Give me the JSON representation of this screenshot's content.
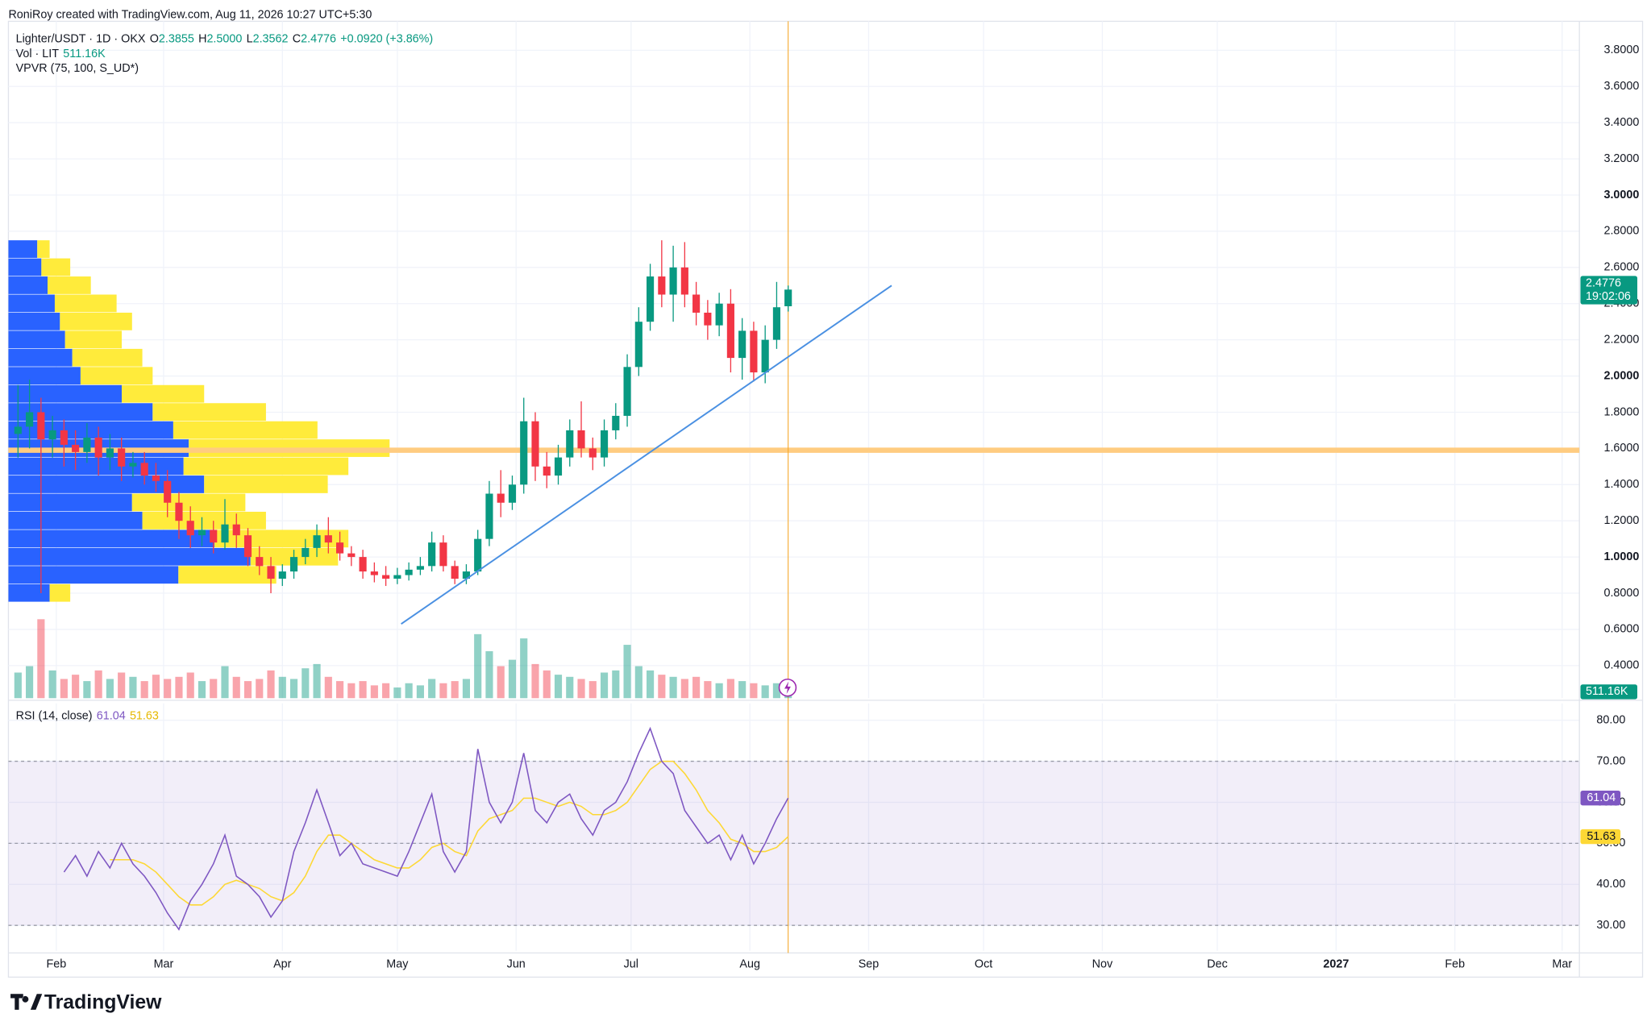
{
  "header": {
    "attribution": "RoniRoy created with TradingView.com, Aug 11, 2026 10:27 UTC+5:30"
  },
  "chart_data": {
    "type": "candlestick",
    "legend": {
      "symbol": "Lighter/USDT · 1D · OKX",
      "ohlc": [
        {
          "label": "O",
          "value": "2.3855"
        },
        {
          "label": "H",
          "value": "2.5000"
        },
        {
          "label": "L",
          "value": "2.3562"
        },
        {
          "label": "C",
          "value": "2.4776"
        }
      ],
      "change": "+0.0920 (+3.86%)",
      "volume_label": "Vol · LIT",
      "volume_value": "511.16K",
      "vpvr_label": "VPVR (75, 100, S_UD*)"
    },
    "x": [
      21,
      24,
      27,
      30,
      33,
      36,
      39,
      42,
      45,
      48,
      51,
      54,
      57,
      60,
      63,
      66,
      69,
      72,
      75,
      78,
      81,
      84,
      87,
      90,
      93,
      96,
      99,
      102,
      105,
      108,
      111,
      114,
      117,
      120,
      123,
      126,
      129,
      132,
      135,
      138,
      141,
      144,
      147,
      150,
      153,
      156,
      159,
      162,
      165,
      168,
      171,
      174,
      177,
      180,
      183,
      186,
      189,
      192,
      195,
      198,
      201,
      204,
      207,
      210,
      213,
      216,
      219,
      222
    ],
    "open": [
      1.68,
      1.72,
      1.8,
      1.65,
      1.7,
      1.62,
      1.58,
      1.66,
      1.55,
      1.6,
      1.5,
      1.52,
      1.45,
      1.42,
      1.3,
      1.2,
      1.12,
      1.15,
      1.08,
      1.18,
      1.12,
      1.0,
      0.95,
      0.88,
      0.92,
      1.0,
      1.05,
      1.12,
      1.08,
      1.02,
      1.0,
      0.92,
      0.9,
      0.88,
      0.9,
      0.93,
      0.95,
      1.08,
      0.95,
      0.88,
      0.92,
      1.1,
      1.35,
      1.3,
      1.4,
      1.75,
      1.5,
      1.45,
      1.55,
      1.7,
      1.6,
      1.55,
      1.7,
      1.78,
      2.05,
      2.3,
      2.55,
      2.45,
      2.6,
      2.45,
      2.35,
      2.28,
      2.4,
      2.1,
      2.25,
      2.02,
      2.2,
      2.3855
    ],
    "high": [
      1.95,
      1.98,
      1.88,
      1.78,
      1.76,
      1.7,
      1.74,
      1.72,
      1.68,
      1.66,
      1.58,
      1.58,
      1.52,
      1.48,
      1.36,
      1.28,
      1.22,
      1.2,
      1.32,
      1.24,
      1.16,
      1.06,
      1.0,
      0.96,
      1.04,
      1.1,
      1.18,
      1.22,
      1.14,
      1.06,
      1.04,
      0.97,
      0.95,
      0.94,
      0.97,
      1.0,
      1.14,
      1.12,
      0.98,
      0.96,
      1.15,
      1.42,
      1.48,
      1.45,
      1.88,
      1.8,
      1.58,
      1.62,
      1.76,
      1.86,
      1.66,
      1.76,
      1.85,
      2.12,
      2.38,
      2.62,
      2.75,
      2.72,
      2.74,
      2.52,
      2.42,
      2.46,
      2.48,
      2.32,
      2.3,
      2.28,
      2.52,
      2.5
    ],
    "low": [
      1.55,
      1.6,
      0.8,
      1.55,
      1.5,
      1.48,
      1.52,
      1.45,
      1.48,
      1.42,
      1.44,
      1.4,
      1.36,
      1.22,
      1.1,
      1.05,
      1.06,
      1.02,
      1.04,
      1.05,
      0.95,
      0.9,
      0.8,
      0.84,
      0.88,
      0.96,
      1.0,
      1.02,
      0.98,
      0.95,
      0.88,
      0.86,
      0.84,
      0.85,
      0.87,
      0.9,
      0.92,
      0.92,
      0.85,
      0.85,
      0.9,
      1.06,
      1.22,
      1.26,
      1.35,
      1.42,
      1.38,
      1.4,
      1.5,
      1.55,
      1.48,
      1.5,
      1.65,
      1.72,
      2.0,
      2.25,
      2.38,
      2.3,
      2.38,
      2.28,
      2.2,
      2.22,
      2.02,
      1.98,
      1.97,
      1.96,
      2.15,
      2.3562
    ],
    "close": [
      1.72,
      1.8,
      1.65,
      1.7,
      1.62,
      1.58,
      1.66,
      1.55,
      1.6,
      1.5,
      1.52,
      1.45,
      1.42,
      1.3,
      1.2,
      1.12,
      1.15,
      1.08,
      1.18,
      1.12,
      1.0,
      0.95,
      0.88,
      0.92,
      1.0,
      1.05,
      1.12,
      1.08,
      1.02,
      1.0,
      0.92,
      0.9,
      0.88,
      0.9,
      0.93,
      0.95,
      1.08,
      0.95,
      0.88,
      0.92,
      1.1,
      1.35,
      1.3,
      1.4,
      1.75,
      1.5,
      1.45,
      1.55,
      1.7,
      1.6,
      1.55,
      1.7,
      1.78,
      2.05,
      2.3,
      2.55,
      2.45,
      2.6,
      2.45,
      2.35,
      2.28,
      2.4,
      2.1,
      2.25,
      2.02,
      2.2,
      2.38,
      2.4776
    ],
    "volume": [
      1200000,
      1500000,
      3700000,
      1300000,
      900000,
      1100000,
      800000,
      1300000,
      900000,
      1200000,
      1000000,
      800000,
      1100000,
      900000,
      1000000,
      1200000,
      800000,
      900000,
      1500000,
      1000000,
      800000,
      900000,
      1300000,
      1000000,
      900000,
      1400000,
      1600000,
      1000000,
      800000,
      700000,
      800000,
      600000,
      700000,
      500000,
      700000,
      600000,
      900000,
      700000,
      800000,
      900000,
      3000000,
      2200000,
      1500000,
      1800000,
      2800000,
      1600000,
      1300000,
      1100000,
      1000000,
      900000,
      800000,
      1200000,
      1300000,
      2500000,
      1500000,
      1300000,
      1100000,
      1000000,
      900000,
      1000000,
      800000,
      700000,
      900000,
      800000,
      700000,
      600000,
      700000,
      511160
    ],
    "up_color": "#089981",
    "down_color": "#f23645",
    "xlim": [
      18.5,
      428.5
    ],
    "xticks": [
      {
        "value": 31,
        "label": "Feb"
      },
      {
        "value": 59,
        "label": "Mar"
      },
      {
        "value": 90,
        "label": "Apr"
      },
      {
        "value": 120,
        "label": "May"
      },
      {
        "value": 151,
        "label": "Jun"
      },
      {
        "value": 181,
        "label": "Jul"
      },
      {
        "value": 212,
        "label": "Aug"
      },
      {
        "value": 243,
        "label": "Sep"
      },
      {
        "value": 273,
        "label": "Oct"
      },
      {
        "value": 304,
        "label": "Nov"
      },
      {
        "value": 334,
        "label": "Dec"
      },
      {
        "value": 365,
        "label": "2027"
      },
      {
        "value": 396,
        "label": "Feb"
      },
      {
        "value": 424,
        "label": "Mar"
      }
    ],
    "ylim": [
      0.22,
      3.96
    ],
    "yticks": [
      {
        "value": 0.4,
        "label": "0.4000"
      },
      {
        "value": 0.6,
        "label": "0.6000"
      },
      {
        "value": 0.8,
        "label": "0.8000"
      },
      {
        "value": 1.0,
        "label": "1.0000"
      },
      {
        "value": 1.2,
        "label": "1.2000"
      },
      {
        "value": 1.4,
        "label": "1.4000"
      },
      {
        "value": 1.6,
        "label": "1.6000"
      },
      {
        "value": 1.8,
        "label": "1.8000"
      },
      {
        "value": 2.0,
        "label": "2.0000"
      },
      {
        "value": 2.2,
        "label": "2.2000"
      },
      {
        "value": 2.4,
        "label": "2.4000"
      },
      {
        "value": 2.6,
        "label": "2.6000"
      },
      {
        "value": 2.8,
        "label": "2.8000"
      },
      {
        "value": 3.0,
        "label": "3.0000"
      },
      {
        "value": 3.2,
        "label": "3.2000"
      },
      {
        "value": 3.4,
        "label": "3.4000"
      },
      {
        "value": 3.6,
        "label": "3.6000"
      },
      {
        "value": 3.8,
        "label": "3.8000"
      }
    ],
    "grid": true,
    "last_price_label": "2.4776",
    "countdown": "19:02:06",
    "volume_badge": "511.16K",
    "vpvr": {
      "prices": [
        0.8,
        0.9,
        1.0,
        1.1,
        1.2,
        1.3,
        1.4,
        1.5,
        1.6,
        1.7,
        1.8,
        1.9,
        2.0,
        2.1,
        2.2,
        2.3,
        2.4,
        2.5,
        2.6,
        2.7
      ],
      "up": [
        40,
        165,
        235,
        200,
        130,
        120,
        190,
        170,
        175,
        160,
        140,
        110,
        70,
        62,
        55,
        50,
        45,
        38,
        32,
        28
      ],
      "down": [
        20,
        95,
        85,
        130,
        120,
        110,
        120,
        160,
        195,
        140,
        110,
        80,
        70,
        68,
        55,
        70,
        60,
        42,
        28,
        12
      ],
      "up_color": "#2962ff",
      "down_color": "#ffeb3b",
      "poc": 1.59,
      "poc_color": "#ffcc80"
    },
    "trendline": {
      "x": [
        121,
        249
      ],
      "y": [
        0.63,
        2.5
      ],
      "color": "#4a90e2"
    },
    "cursor_color": "#f5a623",
    "rsi": {
      "label": "RSI (14, close)",
      "values": [
        null,
        null,
        null,
        null,
        43,
        47,
        42,
        48,
        44,
        50,
        45,
        42,
        38,
        33,
        29,
        36,
        40,
        45,
        52,
        42,
        40,
        37,
        32,
        36,
        48,
        55,
        63,
        55,
        47,
        50,
        45,
        44,
        43,
        42,
        48,
        55,
        62,
        48,
        43,
        48,
        73,
        60,
        55,
        60,
        72,
        58,
        55,
        60,
        62,
        56,
        52,
        58,
        60,
        65,
        72,
        78,
        70,
        67,
        58,
        54,
        50,
        52,
        46,
        52,
        45,
        50,
        56,
        61.04
      ],
      "ma": [
        null,
        null,
        null,
        null,
        null,
        null,
        null,
        null,
        46,
        46,
        46,
        45,
        43,
        40,
        37,
        35,
        35,
        37,
        40,
        41,
        40,
        39,
        37,
        36,
        38,
        42,
        48,
        52,
        52,
        50,
        48,
        46,
        45,
        44,
        44,
        46,
        49,
        50,
        48,
        47,
        53,
        56,
        57,
        58,
        61,
        61,
        60,
        59,
        60,
        59,
        57,
        57,
        58,
        60,
        64,
        68,
        70,
        70,
        67,
        63,
        58,
        55,
        51,
        50,
        48,
        48,
        49,
        51.63
      ],
      "value_label": "61.04",
      "ma_label": "51.63",
      "color": "#7e57c2",
      "ma_color": "#fdd835",
      "ylim": [
        23.8,
        84.1
      ],
      "yticks": [
        {
          "value": 30,
          "label": "30.00"
        },
        {
          "value": 40,
          "label": "40.00"
        },
        {
          "value": 50,
          "label": "50.00"
        },
        {
          "value": 60,
          "label": "60.00"
        },
        {
          "value": 70,
          "label": "70.00"
        },
        {
          "value": 80,
          "label": "80.00"
        }
      ],
      "levels": [
        70,
        50,
        30
      ]
    }
  },
  "footer": {
    "logo": "TradingView"
  }
}
